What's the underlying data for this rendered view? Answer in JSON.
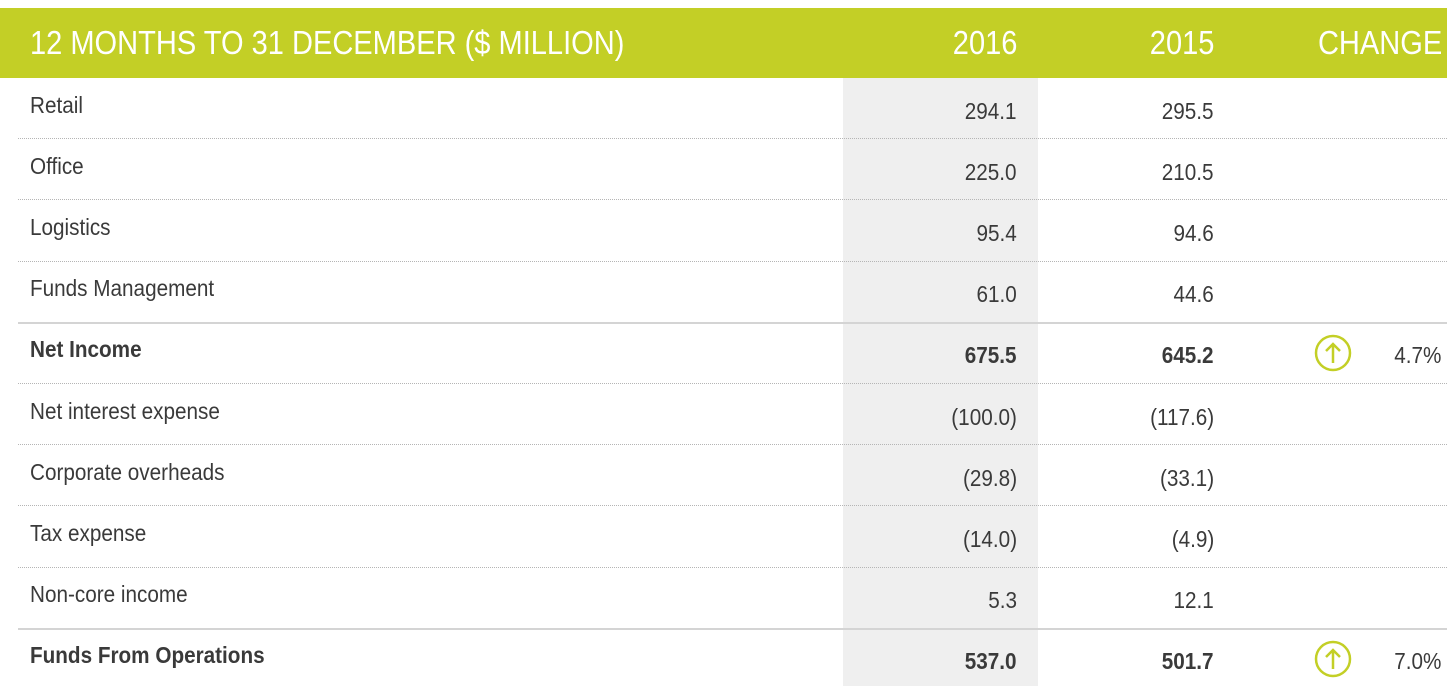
{
  "header": {
    "title": "12 MONTHS TO 31 DECEMBER ($ MILLION)",
    "col_2016": "2016",
    "col_2015": "2015",
    "col_change": "CHANGE"
  },
  "table": {
    "rows": [
      [
        "Retail",
        "294.1",
        "295.5"
      ],
      [
        "Office",
        "225.0",
        "210.5"
      ],
      [
        "Logistics",
        "95.4",
        "94.6"
      ],
      [
        "Funds Management",
        "61.0",
        "44.6"
      ],
      [
        "Net Income",
        "675.5",
        "645.2",
        "4.7%"
      ],
      [
        "Net interest expense",
        "(100.0)",
        "(117.6)"
      ],
      [
        "Corporate overheads",
        "(29.8)",
        "(33.1)"
      ],
      [
        "Tax expense",
        "(14.0)",
        "(4.9)"
      ],
      [
        "Non-core income",
        "5.3",
        "12.1"
      ],
      [
        "Funds From Operations",
        "537.0",
        "501.7",
        "7.0%"
      ]
    ]
  }
}
